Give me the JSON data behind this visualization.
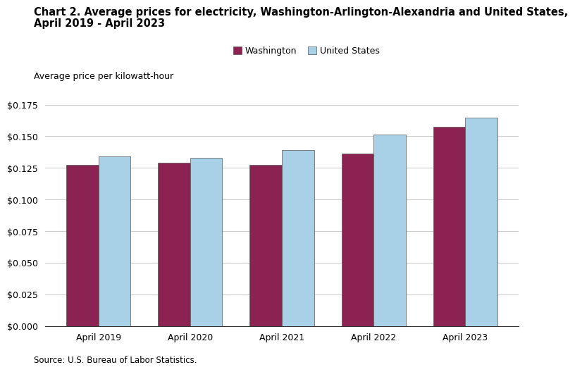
{
  "title_line1": "Chart 2. Average prices for electricity, Washington-Arlington-Alexandria and United States,",
  "title_line2": "April 2019 - April 2023",
  "ylabel": "Average price per kilowatt-hour",
  "source": "Source: U.S. Bureau of Labor Statistics.",
  "categories": [
    "April 2019",
    "April 2020",
    "April 2021",
    "April 2022",
    "April 2023"
  ],
  "washington": [
    0.1272,
    0.1293,
    0.1272,
    0.1362,
    0.1573
  ],
  "united_states": [
    0.1344,
    0.1331,
    0.139,
    0.1514,
    0.1649
  ],
  "washington_color": "#8B2252",
  "us_color": "#A8D0E6",
  "washington_label": "Washington",
  "us_label": "United States",
  "ylim": [
    0,
    0.175
  ],
  "yticks": [
    0.0,
    0.025,
    0.05,
    0.075,
    0.1,
    0.125,
    0.15,
    0.175
  ],
  "bar_width": 0.35,
  "background_color": "#ffffff",
  "grid_color": "#cccccc",
  "title_fontsize": 10.5,
  "label_fontsize": 9,
  "tick_fontsize": 9,
  "legend_fontsize": 9,
  "source_fontsize": 8.5
}
